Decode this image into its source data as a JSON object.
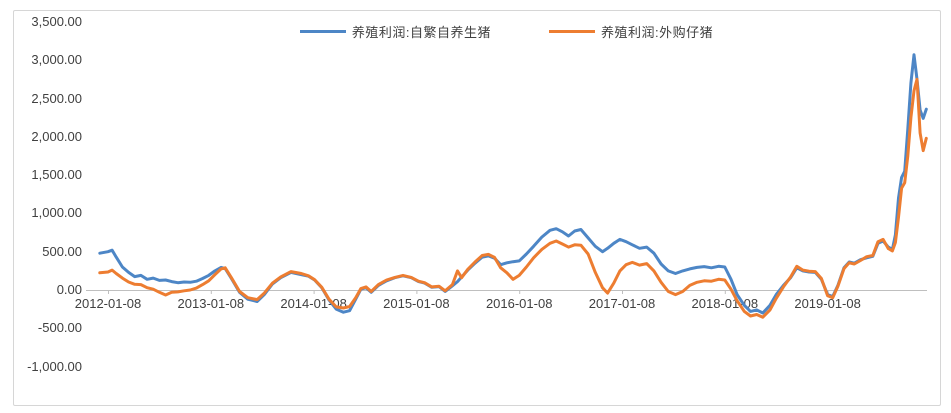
{
  "chart_data": {
    "type": "line",
    "title": "",
    "legend_position": "top-center",
    "grid": "off",
    "axis_color": "#bfbfbf",
    "label_color": "#404040",
    "background": "#ffffff",
    "x_axis": {
      "tick_labels": [
        "2012-01-08",
        "2013-01-08",
        "2014-01-08",
        "2015-01-08",
        "2016-01-08",
        "2017-01-08",
        "2018-01-08",
        "2019-01-08"
      ],
      "tick_values": [
        2012.02,
        2013.02,
        2014.02,
        2015.02,
        2016.02,
        2017.02,
        2018.02,
        2019.02
      ],
      "range": [
        2011.9,
        2020.0
      ]
    },
    "y_axis": {
      "tick_labels": [
        "3,500.00",
        "3,000.00",
        "2,500.00",
        "2,000.00",
        "1,500.00",
        "1,000.00",
        "500.00",
        "0.00",
        "-500.00",
        "-1,000.00"
      ],
      "tick_values": [
        3500,
        3000,
        2500,
        2000,
        1500,
        1000,
        500,
        0,
        -500,
        -1000
      ],
      "range": [
        -1000,
        3500
      ]
    },
    "x": [
      2011.94,
      2012.02,
      2012.06,
      2012.1,
      2012.16,
      2012.22,
      2012.28,
      2012.34,
      2012.4,
      2012.46,
      2012.52,
      2012.58,
      2012.64,
      2012.7,
      2012.76,
      2012.82,
      2012.88,
      2012.94,
      2013.0,
      2013.06,
      2013.12,
      2013.16,
      2013.22,
      2013.3,
      2013.38,
      2013.47,
      2013.54,
      2013.62,
      2013.7,
      2013.8,
      2013.9,
      2013.97,
      2014.03,
      2014.1,
      2014.17,
      2014.24,
      2014.31,
      2014.37,
      2014.43,
      2014.48,
      2014.53,
      2014.58,
      2014.65,
      2014.73,
      2014.81,
      2014.89,
      2014.97,
      2015.04,
      2015.1,
      2015.17,
      2015.24,
      2015.3,
      2015.37,
      2015.42,
      2015.46,
      2015.52,
      2015.59,
      2015.66,
      2015.72,
      2015.78,
      2015.84,
      2015.9,
      2015.96,
      2016.02,
      2016.09,
      2016.16,
      2016.24,
      2016.32,
      2016.38,
      2016.44,
      2016.5,
      2016.56,
      2016.62,
      2016.69,
      2016.76,
      2016.83,
      2016.88,
      2016.94,
      2017.0,
      2017.06,
      2017.12,
      2017.19,
      2017.26,
      2017.33,
      2017.4,
      2017.47,
      2017.54,
      2017.61,
      2017.68,
      2017.75,
      2017.82,
      2017.89,
      2017.96,
      2018.02,
      2018.08,
      2018.14,
      2018.21,
      2018.27,
      2018.33,
      2018.39,
      2018.46,
      2018.52,
      2018.59,
      2018.66,
      2018.72,
      2018.78,
      2018.84,
      2018.9,
      2018.96,
      2019.02,
      2019.07,
      2019.12,
      2019.18,
      2019.23,
      2019.28,
      2019.34,
      2019.4,
      2019.46,
      2019.51,
      2019.56,
      2019.61,
      2019.65,
      2019.68,
      2019.71,
      2019.74,
      2019.77,
      2019.8,
      2019.83,
      2019.86,
      2019.89,
      2019.92,
      2019.95,
      2019.98
    ],
    "series": [
      {
        "name": "养殖利润:自繁自养生猪",
        "color": "#4d86c6",
        "values": [
          480,
          500,
          520,
          430,
          300,
          230,
          175,
          190,
          140,
          155,
          125,
          130,
          110,
          95,
          105,
          100,
          115,
          150,
          190,
          250,
          295,
          280,
          150,
          -30,
          -120,
          -150,
          -60,
          80,
          160,
          230,
          200,
          180,
          130,
          30,
          -130,
          -250,
          -290,
          -270,
          -120,
          10,
          30,
          -30,
          60,
          120,
          160,
          185,
          160,
          110,
          90,
          35,
          45,
          -20,
          55,
          110,
          170,
          260,
          350,
          430,
          445,
          415,
          330,
          355,
          370,
          380,
          470,
          570,
          690,
          780,
          800,
          760,
          705,
          770,
          790,
          680,
          570,
          500,
          545,
          610,
          660,
          630,
          590,
          545,
          560,
          480,
          340,
          250,
          215,
          250,
          275,
          295,
          305,
          290,
          310,
          300,
          140,
          -60,
          -200,
          -280,
          -260,
          -300,
          -200,
          -60,
          60,
          160,
          290,
          250,
          235,
          230,
          140,
          -60,
          -85,
          60,
          290,
          365,
          350,
          395,
          420,
          440,
          610,
          640,
          560,
          530,
          720,
          1200,
          1470,
          1550,
          2100,
          2700,
          3070,
          2750,
          2350,
          2240,
          2360
        ]
      },
      {
        "name": "养殖利润:外购仔猪",
        "color": "#ed7d31",
        "values": [
          225,
          235,
          260,
          215,
          155,
          105,
          75,
          70,
          30,
          10,
          -30,
          -65,
          -30,
          -25,
          -10,
          0,
          25,
          70,
          120,
          200,
          275,
          290,
          160,
          -20,
          -100,
          -125,
          -40,
          90,
          170,
          240,
          215,
          185,
          135,
          35,
          -120,
          -220,
          -235,
          -215,
          -100,
          20,
          40,
          -20,
          70,
          130,
          165,
          190,
          165,
          115,
          95,
          40,
          50,
          -10,
          70,
          250,
          160,
          270,
          365,
          450,
          465,
          425,
          290,
          225,
          140,
          190,
          300,
          420,
          530,
          610,
          640,
          600,
          560,
          590,
          585,
          470,
          230,
          30,
          -40,
          90,
          250,
          330,
          360,
          325,
          345,
          250,
          100,
          -20,
          -60,
          -20,
          60,
          100,
          120,
          115,
          140,
          130,
          10,
          -140,
          -280,
          -340,
          -320,
          -355,
          -260,
          -110,
          40,
          170,
          310,
          260,
          245,
          240,
          150,
          -75,
          -100,
          50,
          280,
          355,
          340,
          385,
          435,
          450,
          630,
          660,
          540,
          510,
          620,
          950,
          1330,
          1400,
          1750,
          2250,
          2600,
          2750,
          2050,
          1820,
          1980
        ]
      }
    ]
  }
}
